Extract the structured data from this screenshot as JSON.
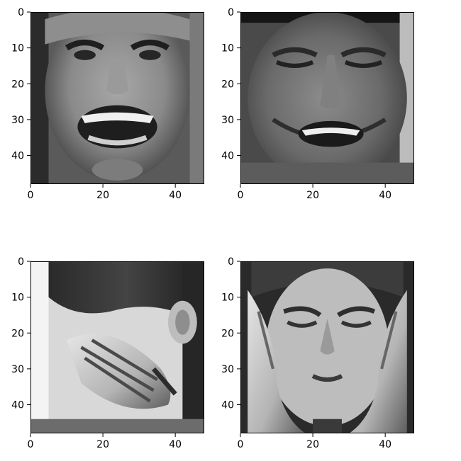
{
  "chart_data": [
    {
      "type": "image",
      "xlim": [
        0,
        48
      ],
      "ylim": [
        48,
        0
      ],
      "xticks": [
        0,
        20,
        40
      ],
      "yticks": [
        0,
        10,
        20,
        30,
        40
      ],
      "xtick_labels": [
        "0",
        "20",
        "40"
      ],
      "ytick_labels": [
        "0",
        "10",
        "20",
        "30",
        "40"
      ],
      "image": {
        "content": "smiling-woman-face-grayscale",
        "colormap": "gray",
        "tone": "light"
      }
    },
    {
      "type": "image",
      "xlim": [
        0,
        48
      ],
      "ylim": [
        48,
        0
      ],
      "xticks": [
        0,
        20,
        40
      ],
      "yticks": [
        0,
        10,
        20,
        30,
        40
      ],
      "xtick_labels": [
        "0",
        "20",
        "40"
      ],
      "ytick_labels": [
        "0",
        "10",
        "20",
        "30",
        "40"
      ],
      "image": {
        "content": "laughing-man-face-grayscale",
        "colormap": "gray",
        "tone": "mid"
      }
    },
    {
      "type": "image",
      "xlim": [
        0,
        48
      ],
      "ylim": [
        48,
        0
      ],
      "xticks": [
        0,
        20,
        40
      ],
      "yticks": [
        0,
        10,
        20,
        30,
        40
      ],
      "xtick_labels": [
        "0",
        "20",
        "40"
      ],
      "ytick_labels": [
        "0",
        "10",
        "20",
        "30",
        "40"
      ],
      "image": {
        "content": "hand-covering-face-grayscale",
        "colormap": "gray",
        "tone": "light"
      }
    },
    {
      "type": "image",
      "xlim": [
        0,
        48
      ],
      "ylim": [
        48,
        0
      ],
      "xticks": [
        0,
        20,
        40
      ],
      "yticks": [
        0,
        10,
        20,
        30,
        40
      ],
      "xtick_labels": [
        "0",
        "20",
        "40"
      ],
      "ytick_labels": [
        "0",
        "10",
        "20",
        "30",
        "40"
      ],
      "image": {
        "content": "woman-hands-on-head-grayscale",
        "colormap": "gray",
        "tone": "mid"
      }
    }
  ]
}
